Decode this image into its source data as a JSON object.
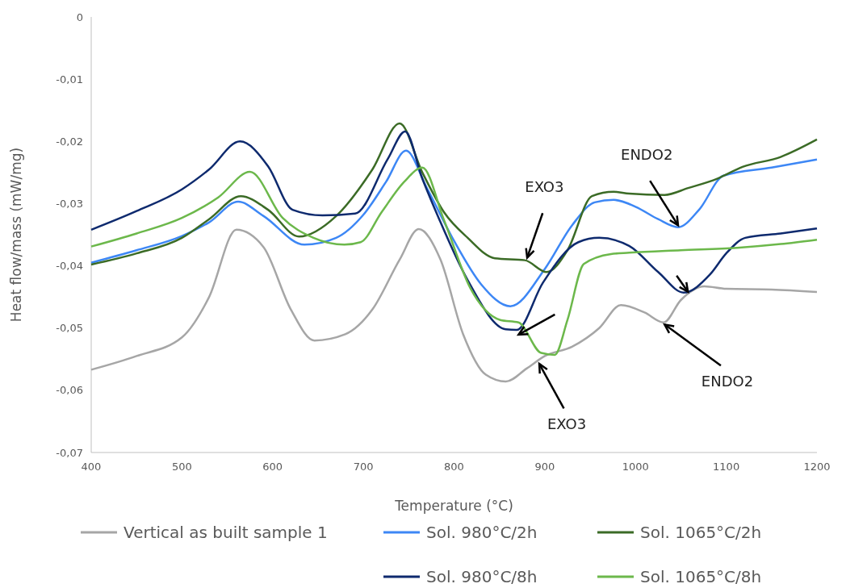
{
  "chart_data": {
    "type": "line",
    "xlabel": "Temperature (°C)",
    "ylabel": "Heat flow/mass (mW/mg)",
    "xlim": [
      400,
      1200
    ],
    "xticks": [
      400,
      500,
      600,
      700,
      800,
      900,
      1000,
      1100,
      1200
    ],
    "ylim": [
      -0.07,
      0
    ],
    "yticks": [
      {
        "value": -0.07,
        "label": "-0,07"
      },
      {
        "value": -0.06,
        "label": "-0,06"
      },
      {
        "value": -0.05,
        "label": "-0,05"
      },
      {
        "value": -0.04,
        "label": "-0,04"
      },
      {
        "value": -0.03,
        "label": "-0,03"
      },
      {
        "value": -0.02,
        "label": "-0,02"
      },
      {
        "value": -0.01,
        "label": "-0,01"
      },
      0
    ],
    "grid": false,
    "legend": "bottom",
    "marker": "none",
    "line_style": "solid",
    "series": [
      {
        "name": "Vertical as built sample 1",
        "color": "#a6a6a6",
        "x": [
          400,
          450,
          500,
          530,
          560,
          590,
          620,
          646,
          680,
          710,
          740,
          761,
          785,
          810,
          835,
          857,
          880,
          900,
          930,
          960,
          984,
          1010,
          1031,
          1050,
          1076,
          1100,
          1150,
          1200
        ],
        "values": [
          -0.0567,
          -0.0545,
          -0.0515,
          -0.045,
          -0.0342,
          -0.037,
          -0.047,
          -0.052,
          -0.051,
          -0.047,
          -0.039,
          -0.0341,
          -0.039,
          -0.051,
          -0.0575,
          -0.0586,
          -0.0565,
          -0.0545,
          -0.053,
          -0.05,
          -0.0463,
          -0.0475,
          -0.0491,
          -0.0455,
          -0.0433,
          -0.0437,
          -0.0438,
          -0.0442
        ]
      },
      {
        "name": "Sol. 980°C/2h",
        "color": "#3d87f5",
        "x": [
          400,
          450,
          500,
          530,
          562,
          590,
          635,
          670,
          700,
          725,
          747,
          770,
          800,
          830,
          862,
          900,
          930,
          955,
          976,
          1000,
          1025,
          1047,
          1070,
          1097,
          1150,
          1200
        ],
        "values": [
          -0.0395,
          -0.0375,
          -0.0352,
          -0.033,
          -0.0297,
          -0.032,
          -0.0366,
          -0.0355,
          -0.0318,
          -0.0265,
          -0.0215,
          -0.0275,
          -0.036,
          -0.043,
          -0.0465,
          -0.0405,
          -0.0335,
          -0.0298,
          -0.0294,
          -0.0305,
          -0.0325,
          -0.0338,
          -0.031,
          -0.0255,
          -0.0242,
          -0.0229
        ]
      },
      {
        "name": "Sol. 1065°C/2h",
        "color": "#3b6b26",
        "x": [
          400,
          450,
          500,
          530,
          565,
          595,
          629,
          670,
          710,
          740,
          765,
          789,
          815,
          845,
          878,
          902,
          925,
          952,
          976,
          993,
          1032,
          1058,
          1090,
          1118,
          1160,
          1200
        ],
        "values": [
          -0.0398,
          -0.038,
          -0.0355,
          -0.0325,
          -0.0288,
          -0.031,
          -0.0353,
          -0.032,
          -0.0245,
          -0.0171,
          -0.025,
          -0.0314,
          -0.0355,
          -0.0388,
          -0.0391,
          -0.041,
          -0.0375,
          -0.0288,
          -0.0281,
          -0.0284,
          -0.0286,
          -0.0275,
          -0.026,
          -0.0241,
          -0.0225,
          -0.0197
        ]
      },
      {
        "name": "Sol. 980°C/8h",
        "color": "#0e2a6e",
        "x": [
          400,
          450,
          500,
          530,
          564,
          595,
          622,
          655,
          691,
          727,
          746,
          765,
          783,
          815,
          857,
          869,
          898,
          937,
          960,
          993,
          1025,
          1053,
          1082,
          1100,
          1121,
          1160,
          1200
        ],
        "values": [
          -0.0342,
          -0.0312,
          -0.0277,
          -0.0245,
          -0.02,
          -0.024,
          -0.031,
          -0.0319,
          -0.0316,
          -0.0228,
          -0.0184,
          -0.026,
          -0.0323,
          -0.0423,
          -0.0502,
          -0.0503,
          -0.0427,
          -0.0362,
          -0.0355,
          -0.0368,
          -0.041,
          -0.0443,
          -0.0414,
          -0.038,
          -0.0355,
          -0.0348,
          -0.034
        ]
      },
      {
        "name": "Sol. 1065°C/8h",
        "color": "#6cb84b",
        "x": [
          400,
          450,
          500,
          540,
          575,
          611,
          645,
          679,
          697,
          720,
          745,
          765,
          789,
          818,
          851,
          871,
          896,
          911,
          925,
          943,
          973,
          993,
          1050,
          1112,
          1160,
          1200
        ],
        "values": [
          -0.0369,
          -0.0348,
          -0.0323,
          -0.029,
          -0.0249,
          -0.0323,
          -0.0355,
          -0.0366,
          -0.0362,
          -0.0314,
          -0.0265,
          -0.0242,
          -0.0327,
          -0.0436,
          -0.0487,
          -0.0491,
          -0.054,
          -0.0543,
          -0.0487,
          -0.0397,
          -0.0381,
          -0.0379,
          -0.0375,
          -0.0371,
          -0.0365,
          -0.0358
        ]
      }
    ],
    "annotations": [
      {
        "text": "EXO3",
        "x": 880,
        "y": -0.039
      },
      {
        "text": "EXO3",
        "x": 893,
        "y": -0.0555
      },
      {
        "text": "ENDO2",
        "x": 1048,
        "y": -0.0338
      },
      {
        "text": "ENDO2",
        "x": 1030,
        "y": -0.0492
      }
    ]
  }
}
